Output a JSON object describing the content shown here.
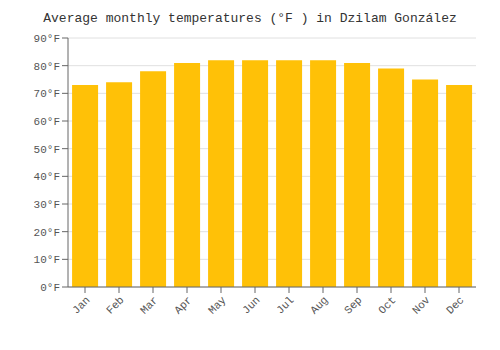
{
  "chart_data": {
    "type": "bar",
    "title": "Average monthly temperatures (°F ) in Dzilam González",
    "categories": [
      "Jan",
      "Feb",
      "Mar",
      "Apr",
      "May",
      "Jun",
      "Jul",
      "Aug",
      "Sep",
      "Oct",
      "Nov",
      "Dec"
    ],
    "values": [
      73,
      74,
      78,
      81,
      82,
      82,
      82,
      82,
      81,
      79,
      75,
      73
    ],
    "color": "#FFC107",
    "ylim": [
      0,
      90
    ],
    "yticks": [
      {
        "value": 0,
        "label": "0°F"
      },
      {
        "value": 10,
        "label": "10°F"
      },
      {
        "value": 20,
        "label": "20°F"
      },
      {
        "value": 30,
        "label": "30°F"
      },
      {
        "value": 40,
        "label": "40°F"
      },
      {
        "value": 50,
        "label": "50°F"
      },
      {
        "value": 60,
        "label": "60°F"
      },
      {
        "value": 70,
        "label": "70°F"
      },
      {
        "value": 80,
        "label": "80°F"
      },
      {
        "value": 90,
        "label": "90°F"
      }
    ],
    "grid": true
  }
}
